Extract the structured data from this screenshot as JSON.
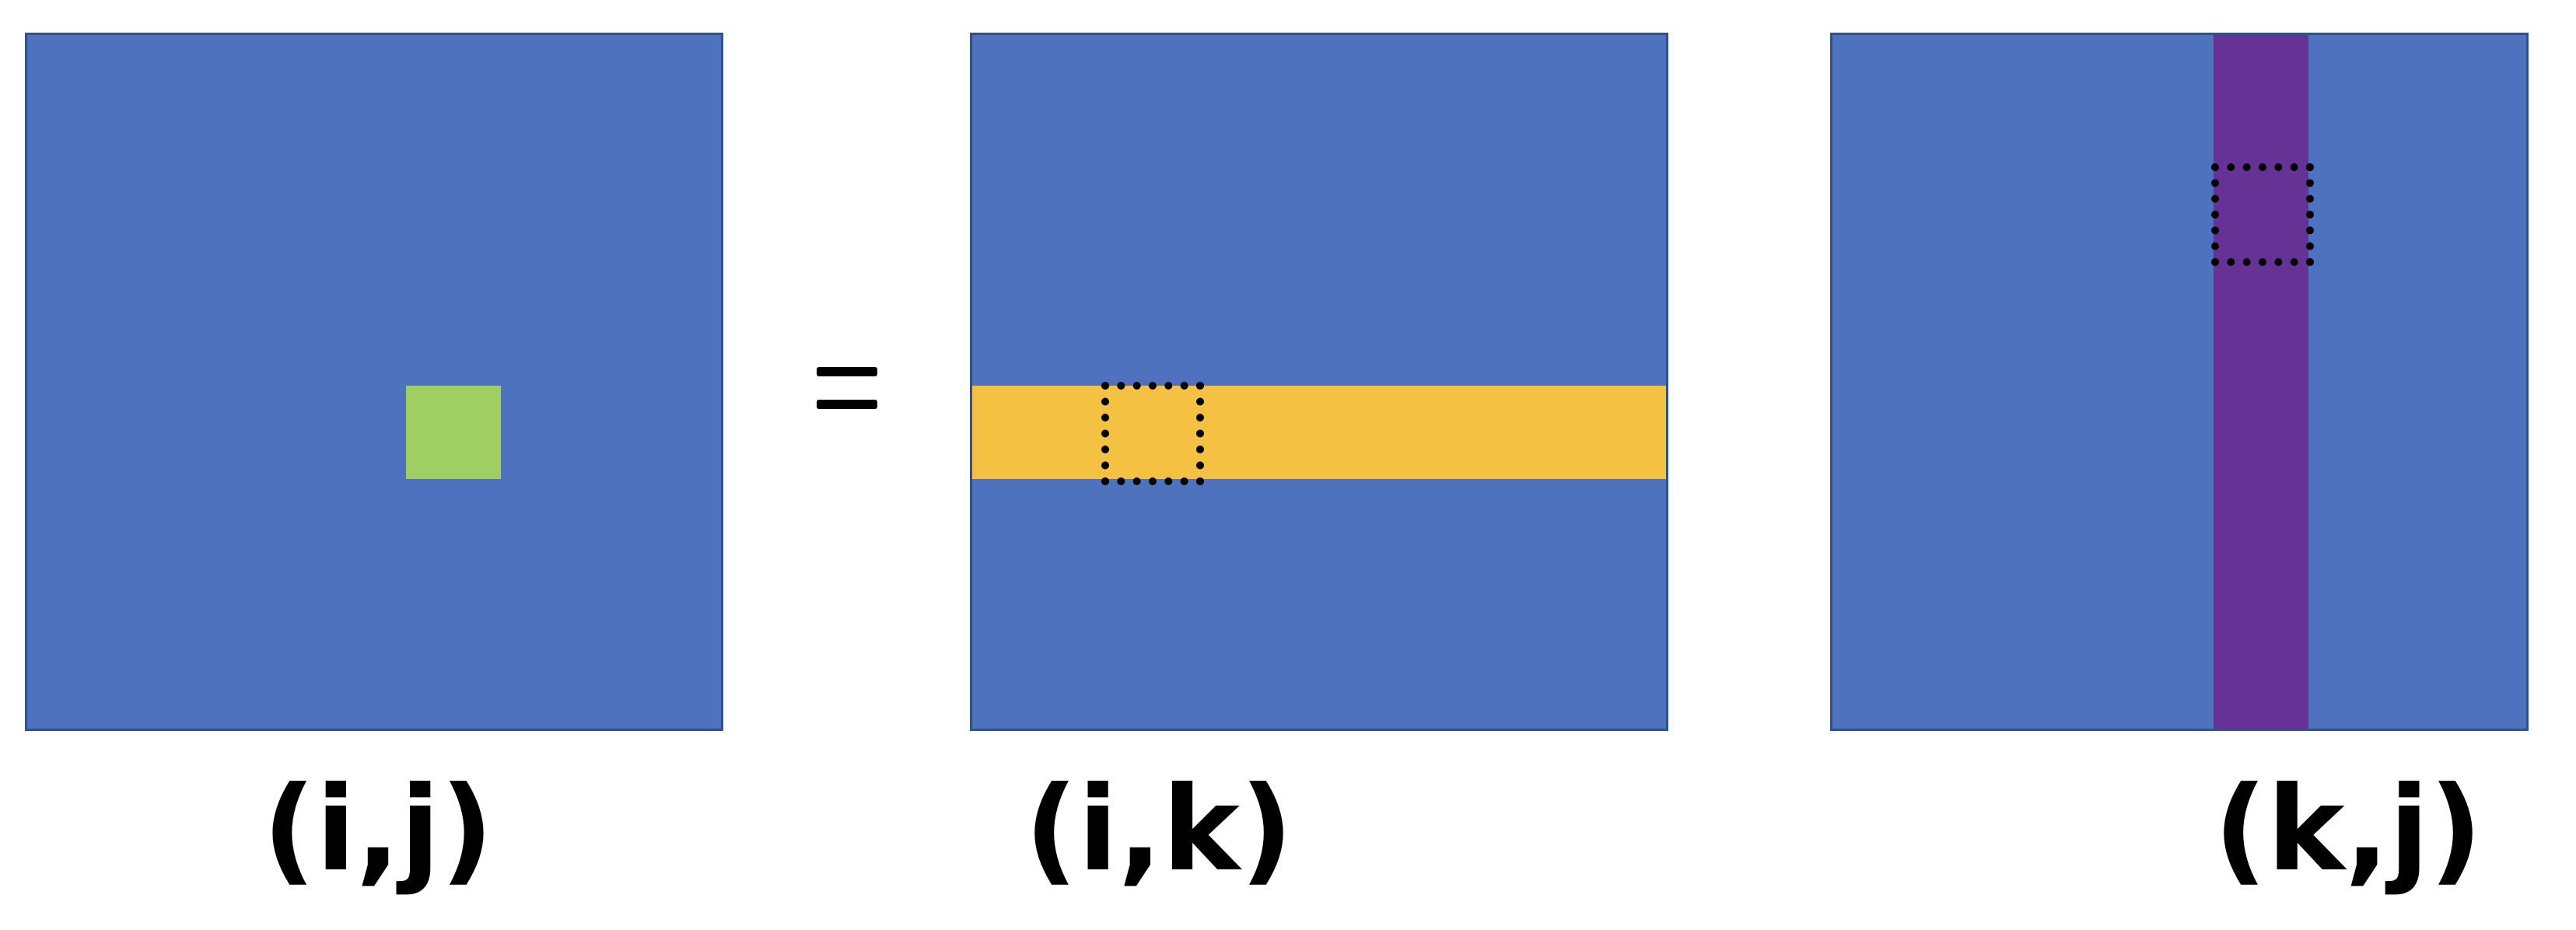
{
  "colors": {
    "matrix_fill": "#4e72be",
    "matrix_border": "#2f528f",
    "highlight_cell": "#9fcf63",
    "highlight_row": "#f4c142",
    "highlight_column": "#673295",
    "dotted_outline": "#000000",
    "background": "#ffffff"
  },
  "operator": "=",
  "labels": {
    "result": "(i,j)",
    "left_operand": "(i,k)",
    "right_operand": "(k,j)"
  }
}
